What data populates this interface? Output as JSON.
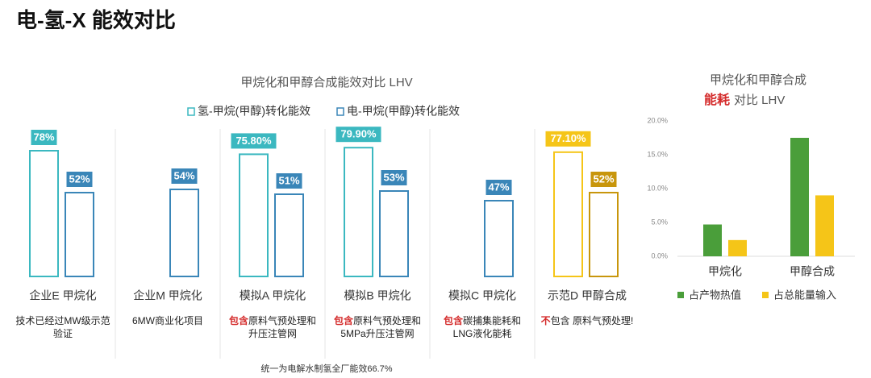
{
  "header": {
    "title": "电-氢-X 能效对比"
  },
  "chart_data": [
    {
      "type": "bar",
      "title": "甲烷化和甲醇合成能效对比 LHV",
      "categories": [
        "企业E 甲烷化",
        "企业M 甲烷化",
        "模拟A 甲烷化",
        "模拟B 甲烷化",
        "模拟C 甲烷化",
        "示范D 甲醇合成"
      ],
      "series": [
        {
          "name": "氢-甲烷(甲醇)转化能效",
          "color": "#3bb8c0",
          "values": [
            78,
            null,
            75.8,
            79.9,
            null,
            77.1
          ],
          "value_labels": [
            "78%",
            null,
            "75.80%",
            "79.90%",
            null,
            "77.10%"
          ]
        },
        {
          "name": "电-甲烷(甲醇)转化能效",
          "color": "#3a86b8",
          "values": [
            52,
            54,
            51,
            53,
            47,
            52
          ],
          "value_labels": [
            "52%",
            "54%",
            "51%",
            "53%",
            "47%",
            "52%"
          ]
        }
      ],
      "highlight": {
        "index": 5,
        "colors": [
          "#f5c518",
          "#c8960c"
        ]
      },
      "notes": [
        {
          "emph": null,
          "text": "技术已经过MW级示范验证"
        },
        {
          "emph": null,
          "text": "6MW商业化项目"
        },
        {
          "emph": "包含",
          "text": "原料气预处理和升压注管网"
        },
        {
          "emph": "包含",
          "text": "原料气预处理和5MPa升压注管网"
        },
        {
          "emph": "包含",
          "text": "碳捕集能耗和LNG液化能耗"
        },
        {
          "emph": "不",
          "text": "包含 原料气预处理!"
        }
      ],
      "footnote": "统一为电解水制氢全厂能效66.7%"
    },
    {
      "type": "bar",
      "title": "甲烷化和甲醇合成",
      "subtitle_emph": "能耗",
      "subtitle": "对比 LHV",
      "categories": [
        "甲烷化",
        "甲醇合成"
      ],
      "series": [
        {
          "name": "占产物热值",
          "color": "#4a9e3a",
          "values": [
            4.7,
            17.5
          ]
        },
        {
          "name": "占总能量输入",
          "color": "#f5c518",
          "values": [
            2.4,
            9.0
          ]
        }
      ],
      "ylim": [
        0,
        20
      ],
      "yticks": [
        {
          "value": 0,
          "label": "0.0%"
        },
        {
          "value": 5,
          "label": "5.0%"
        },
        {
          "value": 10,
          "label": "10.0%"
        },
        {
          "value": 15,
          "label": "15.0%"
        },
        {
          "value": 20,
          "label": "20.0%"
        }
      ]
    }
  ]
}
